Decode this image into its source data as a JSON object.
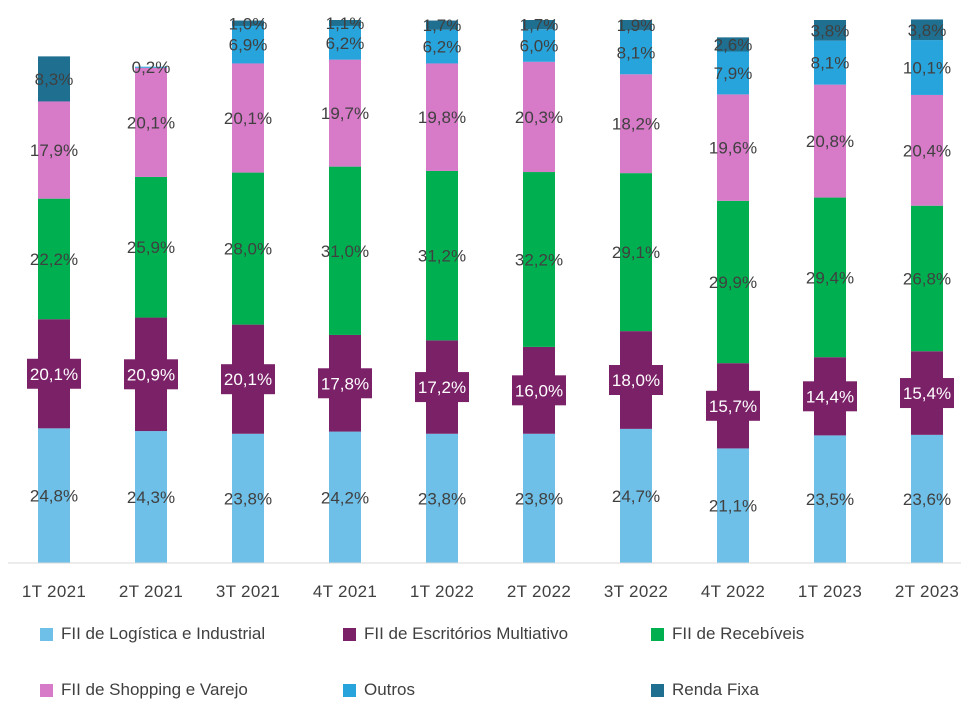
{
  "chart_data": {
    "type": "bar",
    "stacked": true,
    "percent": true,
    "categories": [
      "1T 2021",
      "2T 2021",
      "3T 2021",
      "4T 2021",
      "1T 2022",
      "2T 2022",
      "3T 2022",
      "4T 2022",
      "1T 2023",
      "2T 2023"
    ],
    "series": [
      {
        "name": "FII de Logística e Industrial",
        "color": "#6fc0e8",
        "values": [
          24.8,
          24.3,
          23.8,
          24.2,
          23.8,
          23.8,
          24.7,
          21.1,
          23.5,
          23.6
        ],
        "labels": [
          "24,8%",
          "24,3%",
          "23,8%",
          "24,2%",
          "23,8%",
          "23,8%",
          "24,7%",
          "21,1%",
          "23,5%",
          "23,6%"
        ]
      },
      {
        "name": "FII de Escritórios Multiativo",
        "color": "#7b2168",
        "values": [
          20.1,
          20.9,
          20.1,
          17.8,
          17.2,
          16.0,
          18.0,
          15.7,
          14.4,
          15.4
        ],
        "labels": [
          "20,1%",
          "20,9%",
          "20,1%",
          "17,8%",
          "17,2%",
          "16,0%",
          "18,0%",
          "15,7%",
          "14,4%",
          "15,4%"
        ]
      },
      {
        "name": "FII de Recebíveis",
        "color": "#00b050",
        "values": [
          22.2,
          25.9,
          28.0,
          31.0,
          31.2,
          32.2,
          29.1,
          29.9,
          29.4,
          26.8
        ],
        "labels": [
          "22,2%",
          "25,9%",
          "28,0%",
          "31,0%",
          "31,2%",
          "32,2%",
          "29,1%",
          "29,9%",
          "29,4%",
          "26,8%"
        ]
      },
      {
        "name": "FII de Shopping e Varejo",
        "color": "#d77ac8",
        "values": [
          17.9,
          20.1,
          20.1,
          19.7,
          19.8,
          20.3,
          18.2,
          19.6,
          20.8,
          20.4
        ],
        "labels": [
          "17,9%",
          "20,1%",
          "20,1%",
          "19,7%",
          "19,8%",
          "20,3%",
          "18,2%",
          "19,6%",
          "20,8%",
          "20,4%"
        ]
      },
      {
        "name": "Outros",
        "color": "#27a4dc",
        "values": [
          0.0,
          0.2,
          6.9,
          6.2,
          6.2,
          6.0,
          8.1,
          7.9,
          8.1,
          10.1
        ],
        "labels": [
          "",
          "0,2%",
          "6,9%",
          "6,2%",
          "6,2%",
          "6,0%",
          "8,1%",
          "7,9%",
          "8,1%",
          "10,1%"
        ]
      },
      {
        "name": "Renda Fixa",
        "color": "#1f6f91",
        "values": [
          8.3,
          0.0,
          1.0,
          1.1,
          1.7,
          1.7,
          1.9,
          2.6,
          3.8,
          3.8
        ],
        "labels": [
          "8,3%",
          "",
          "1,0%",
          "1,1%",
          "1,7%",
          "1,7%",
          "1,9%",
          "2,6%",
          "3,8%",
          "3,8%"
        ]
      }
    ],
    "ylim": [
      0,
      100
    ],
    "grid": false,
    "legend_position": "bottom"
  },
  "legend": {
    "items": [
      {
        "label": "FII de Logística e Industrial",
        "color": "#6fc0e8"
      },
      {
        "label": "FII de Escritórios Multiativo",
        "color": "#7b2168"
      },
      {
        "label": "FII de Recebíveis",
        "color": "#00b050"
      },
      {
        "label": "FII de Shopping e Varejo",
        "color": "#d77ac8"
      },
      {
        "label": "Outros",
        "color": "#27a4dc"
      },
      {
        "label": "Renda Fixa",
        "color": "#1f6f91"
      }
    ]
  }
}
